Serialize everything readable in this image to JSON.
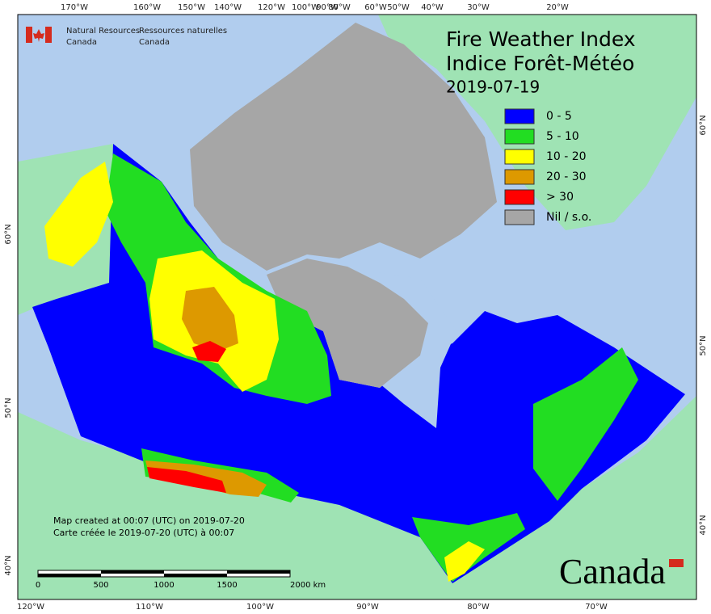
{
  "header": {
    "agency_en": [
      "Natural Resources",
      "Canada"
    ],
    "agency_fr": [
      "Ressources naturelles",
      "Canada"
    ]
  },
  "title": {
    "en": "Fire Weather Index",
    "fr": "Indice Forêt-Météo",
    "date": "2019-07-19"
  },
  "legend": [
    {
      "label": "0 - 5",
      "color": "#0000ff"
    },
    {
      "label": "5 - 10",
      "color": "#22dd22"
    },
    {
      "label": "10 - 20",
      "color": "#ffff00"
    },
    {
      "label": "20 - 30",
      "color": "#dd9900"
    },
    {
      "label": "> 30",
      "color": "#ff0000"
    },
    {
      "label": "Nil / s.o.",
      "color": "#a6a6a6"
    }
  ],
  "longitudes_top": [
    "170°W",
    "160°W",
    "150°W",
    "140°W",
    "120°W",
    "100°W",
    "90°W",
    "80°W",
    "60°W",
    "50°W",
    "40°W",
    "30°W",
    "20°W"
  ],
  "longitudes_bottom": [
    "120°W",
    "110°W",
    "100°W",
    "90°W",
    "80°W",
    "70°W"
  ],
  "latitudes_left": [
    "60°N",
    "50°N",
    "40°N"
  ],
  "latitudes_right": [
    "60°N",
    "50°N",
    "40°N"
  ],
  "scale_bar": [
    "0",
    "500",
    "1000",
    "1500",
    "2000 km"
  ],
  "footer": [
    "Map created at 00:07 (UTC) on 2019-07-20",
    "Carte créée le 2019-07-20 (UTC) à 00:07"
  ],
  "wordmark": "Canada"
}
